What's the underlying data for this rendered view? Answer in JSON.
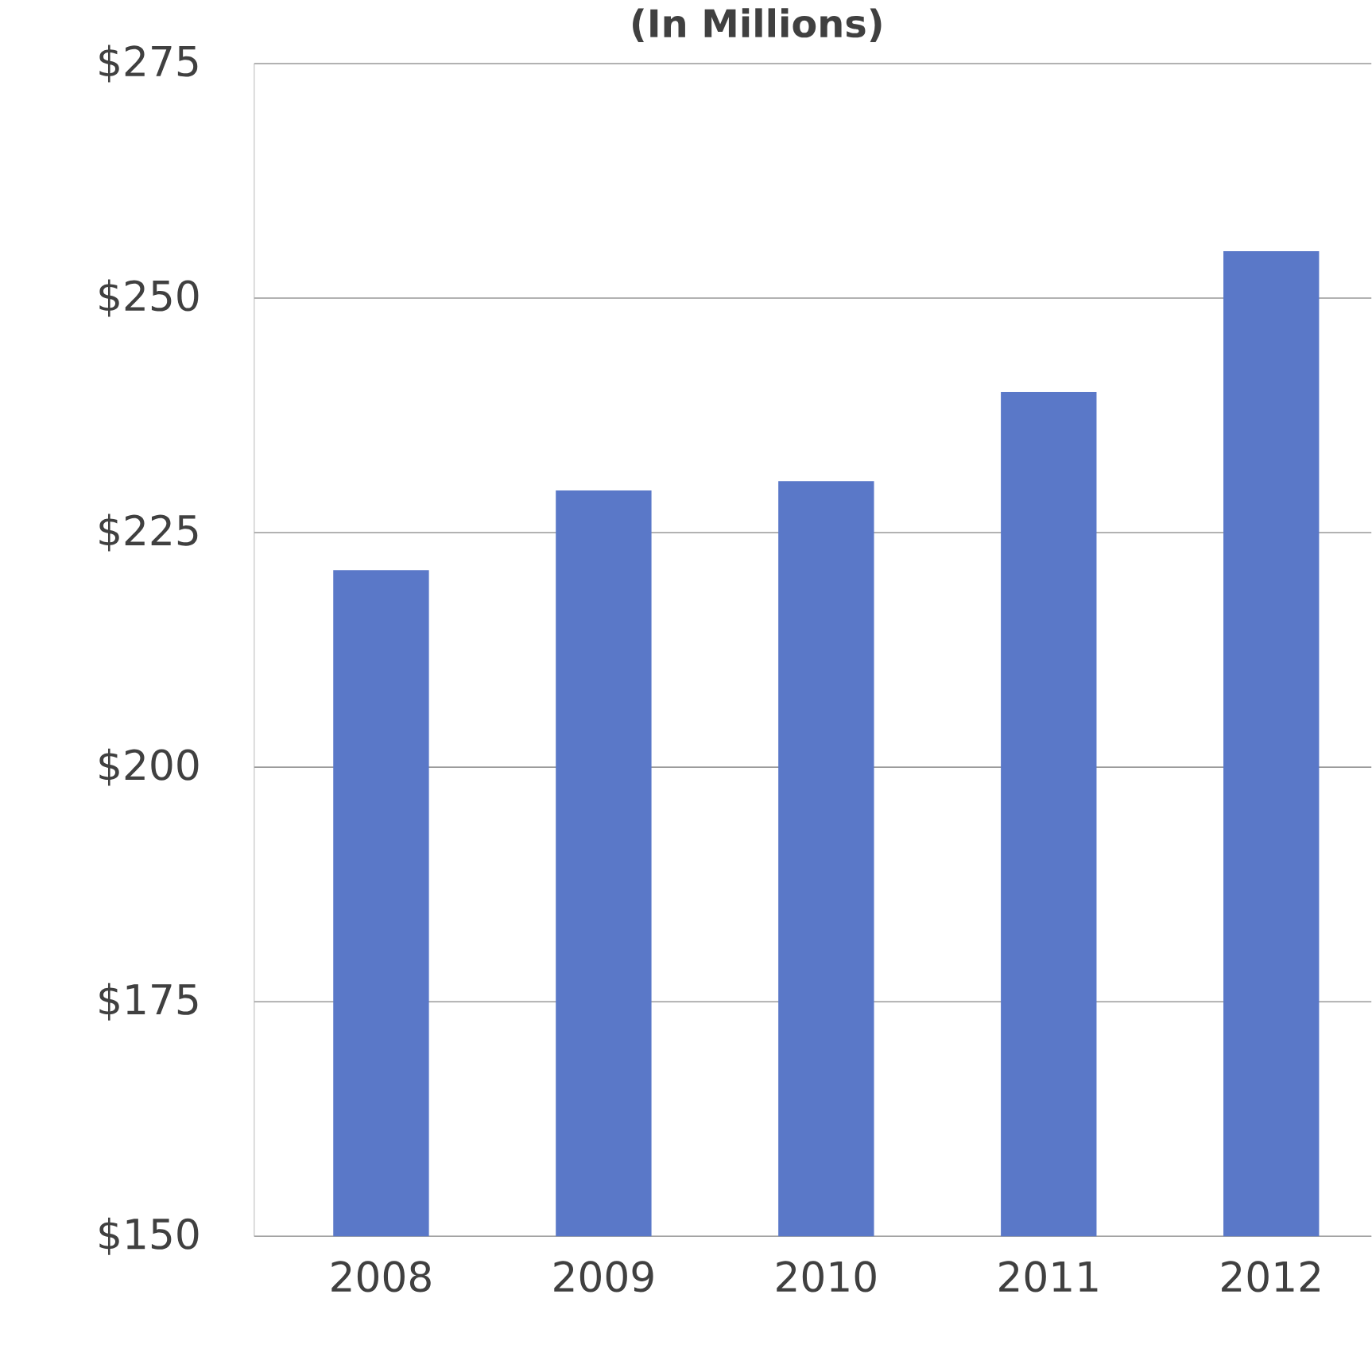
{
  "chart_data": {
    "type": "bar",
    "title": "(In Millions)",
    "categories": [
      "2008",
      "2009",
      "2010",
      "2011",
      "2012"
    ],
    "values": [
      221,
      229.5,
      230.5,
      240,
      255
    ],
    "color": "#5a78c8",
    "ylim": [
      150,
      275
    ],
    "yticks": [
      {
        "value": 150,
        "label": "$150"
      },
      {
        "value": 175,
        "label": "$175"
      },
      {
        "value": 200,
        "label": "$200"
      },
      {
        "value": 225,
        "label": "$225"
      },
      {
        "value": 250,
        "label": "$250"
      },
      {
        "value": 275,
        "label": "$275"
      }
    ],
    "grid": "y"
  }
}
